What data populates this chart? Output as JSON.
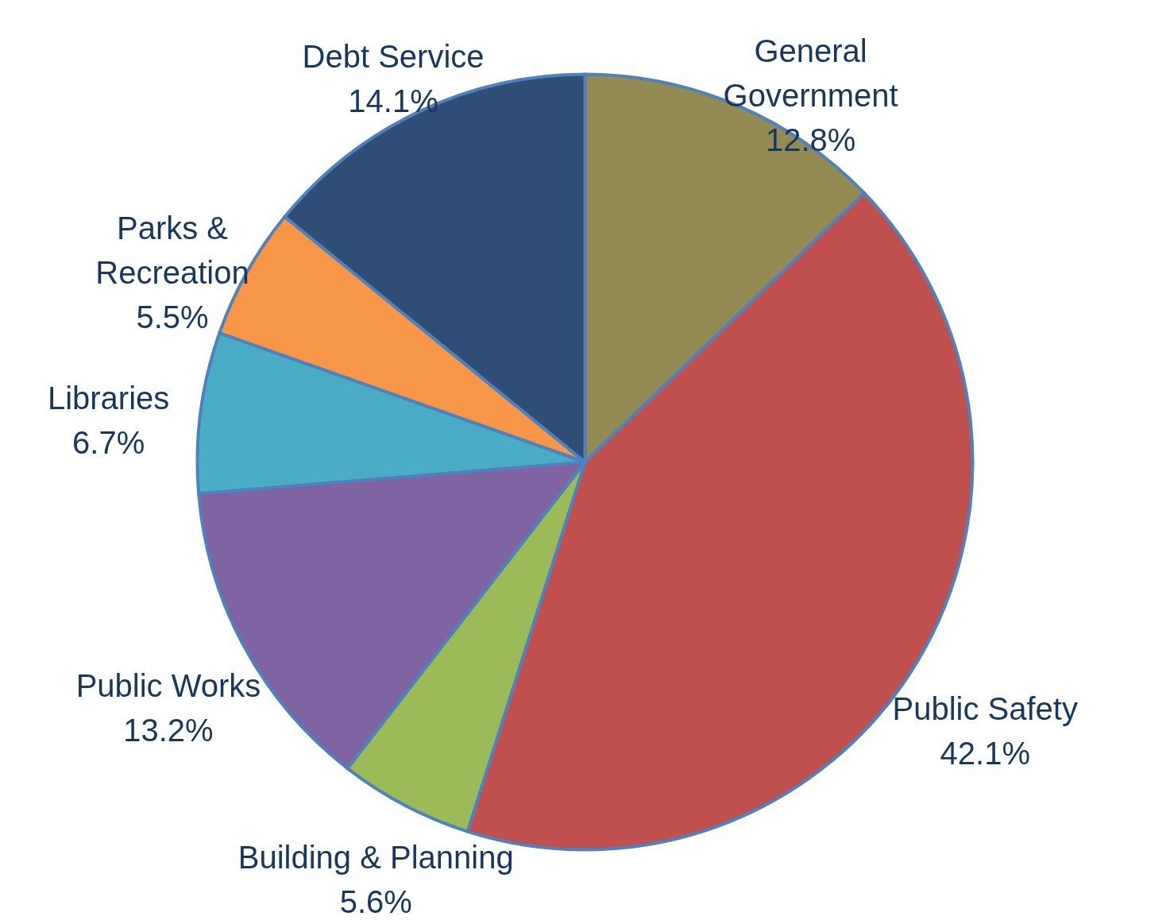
{
  "chart_data": {
    "type": "pie",
    "categories": [
      "General Government",
      "Public Safety",
      "Building & Planning",
      "Public Works",
      "Libraries",
      "Parks & Recreation",
      "Debt Service"
    ],
    "values": [
      12.8,
      42.1,
      5.6,
      13.2,
      6.7,
      5.5,
      14.1
    ],
    "value_labels": [
      "12.8%",
      "42.1%",
      "5.6%",
      "13.2%",
      "6.7%",
      "5.5%",
      "14.1%"
    ],
    "colors": [
      "#948a54",
      "#c0504d",
      "#9bbb59",
      "#8064a2",
      "#4bacc6",
      "#f79646",
      "#2e4e76"
    ]
  }
}
